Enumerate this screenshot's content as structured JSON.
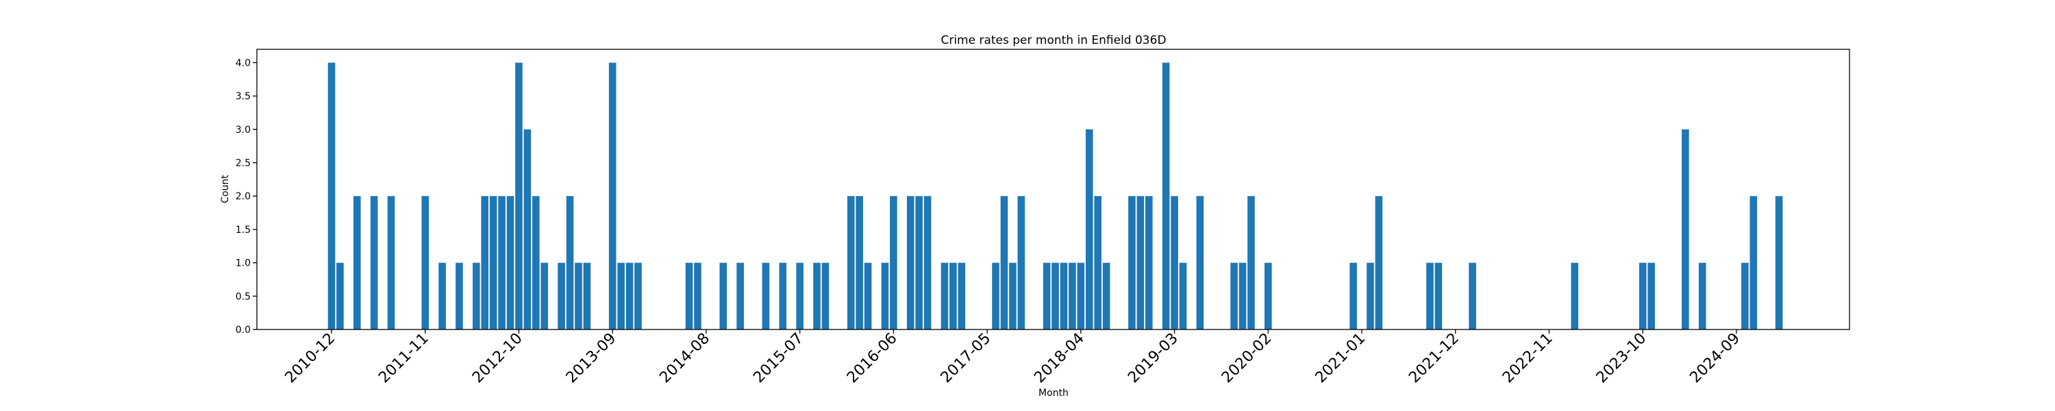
{
  "chart_data": {
    "type": "bar",
    "title": "Crime rates per month in Enfield 036D",
    "xlabel": "Month",
    "ylabel": "Count",
    "ylim": [
      0,
      4.2
    ],
    "yticks": [
      "0.0",
      "0.5",
      "1.0",
      "1.5",
      "2.0",
      "2.5",
      "3.0",
      "3.5",
      "4.0"
    ],
    "xtick_labels": [
      "2010-12",
      "2011-11",
      "2012-10",
      "2013-09",
      "2014-08",
      "2015-07",
      "2016-06",
      "2017-05",
      "2018-04",
      "2019-03",
      "2020-02",
      "2021-01",
      "2021-12",
      "2022-11",
      "2023-10",
      "2024-09"
    ],
    "bar_color": "#1f77b4",
    "grid": false,
    "legend": "none",
    "categories": [
      "2010-12",
      "2011-01",
      "2011-03",
      "2011-05",
      "2011-07",
      "2011-11",
      "2012-01",
      "2012-03",
      "2012-05",
      "2012-06",
      "2012-07",
      "2012-08",
      "2012-09",
      "2012-10",
      "2012-11",
      "2012-12",
      "2013-01",
      "2013-03",
      "2013-04",
      "2013-05",
      "2013-06",
      "2013-09",
      "2013-10",
      "2013-11",
      "2013-12",
      "2014-06",
      "2014-07",
      "2014-10",
      "2014-12",
      "2015-03",
      "2015-05",
      "2015-07",
      "2015-09",
      "2015-10",
      "2016-01",
      "2016-02",
      "2016-03",
      "2016-05",
      "2016-06",
      "2016-08",
      "2016-09",
      "2016-10",
      "2016-12",
      "2017-01",
      "2017-02",
      "2017-06",
      "2017-07",
      "2017-08",
      "2017-09",
      "2017-12",
      "2018-01",
      "2018-02",
      "2018-03",
      "2018-04",
      "2018-05",
      "2018-06",
      "2018-07",
      "2018-10",
      "2018-11",
      "2018-12",
      "2019-02",
      "2019-03",
      "2019-04",
      "2019-06",
      "2019-10",
      "2019-11",
      "2019-12",
      "2020-02",
      "2020-12",
      "2021-02",
      "2021-03",
      "2021-09",
      "2021-10",
      "2022-02",
      "2023-02",
      "2023-10",
      "2023-11",
      "2024-03",
      "2024-05",
      "2024-10",
      "2024-11",
      "2025-02"
    ],
    "values": [
      4,
      1,
      2,
      2,
      2,
      2,
      1,
      1,
      1,
      2,
      2,
      2,
      2,
      4,
      3,
      2,
      1,
      1,
      2,
      1,
      1,
      4,
      1,
      1,
      1,
      1,
      1,
      1,
      1,
      1,
      1,
      1,
      1,
      1,
      2,
      2,
      1,
      1,
      2,
      2,
      2,
      2,
      1,
      1,
      1,
      1,
      2,
      1,
      2,
      1,
      1,
      1,
      1,
      1,
      3,
      2,
      1,
      2,
      2,
      2,
      4,
      2,
      1,
      2,
      1,
      1,
      2,
      1,
      1,
      1,
      2,
      1,
      1,
      1,
      1,
      1,
      1,
      3,
      1,
      1,
      2,
      2
    ]
  }
}
